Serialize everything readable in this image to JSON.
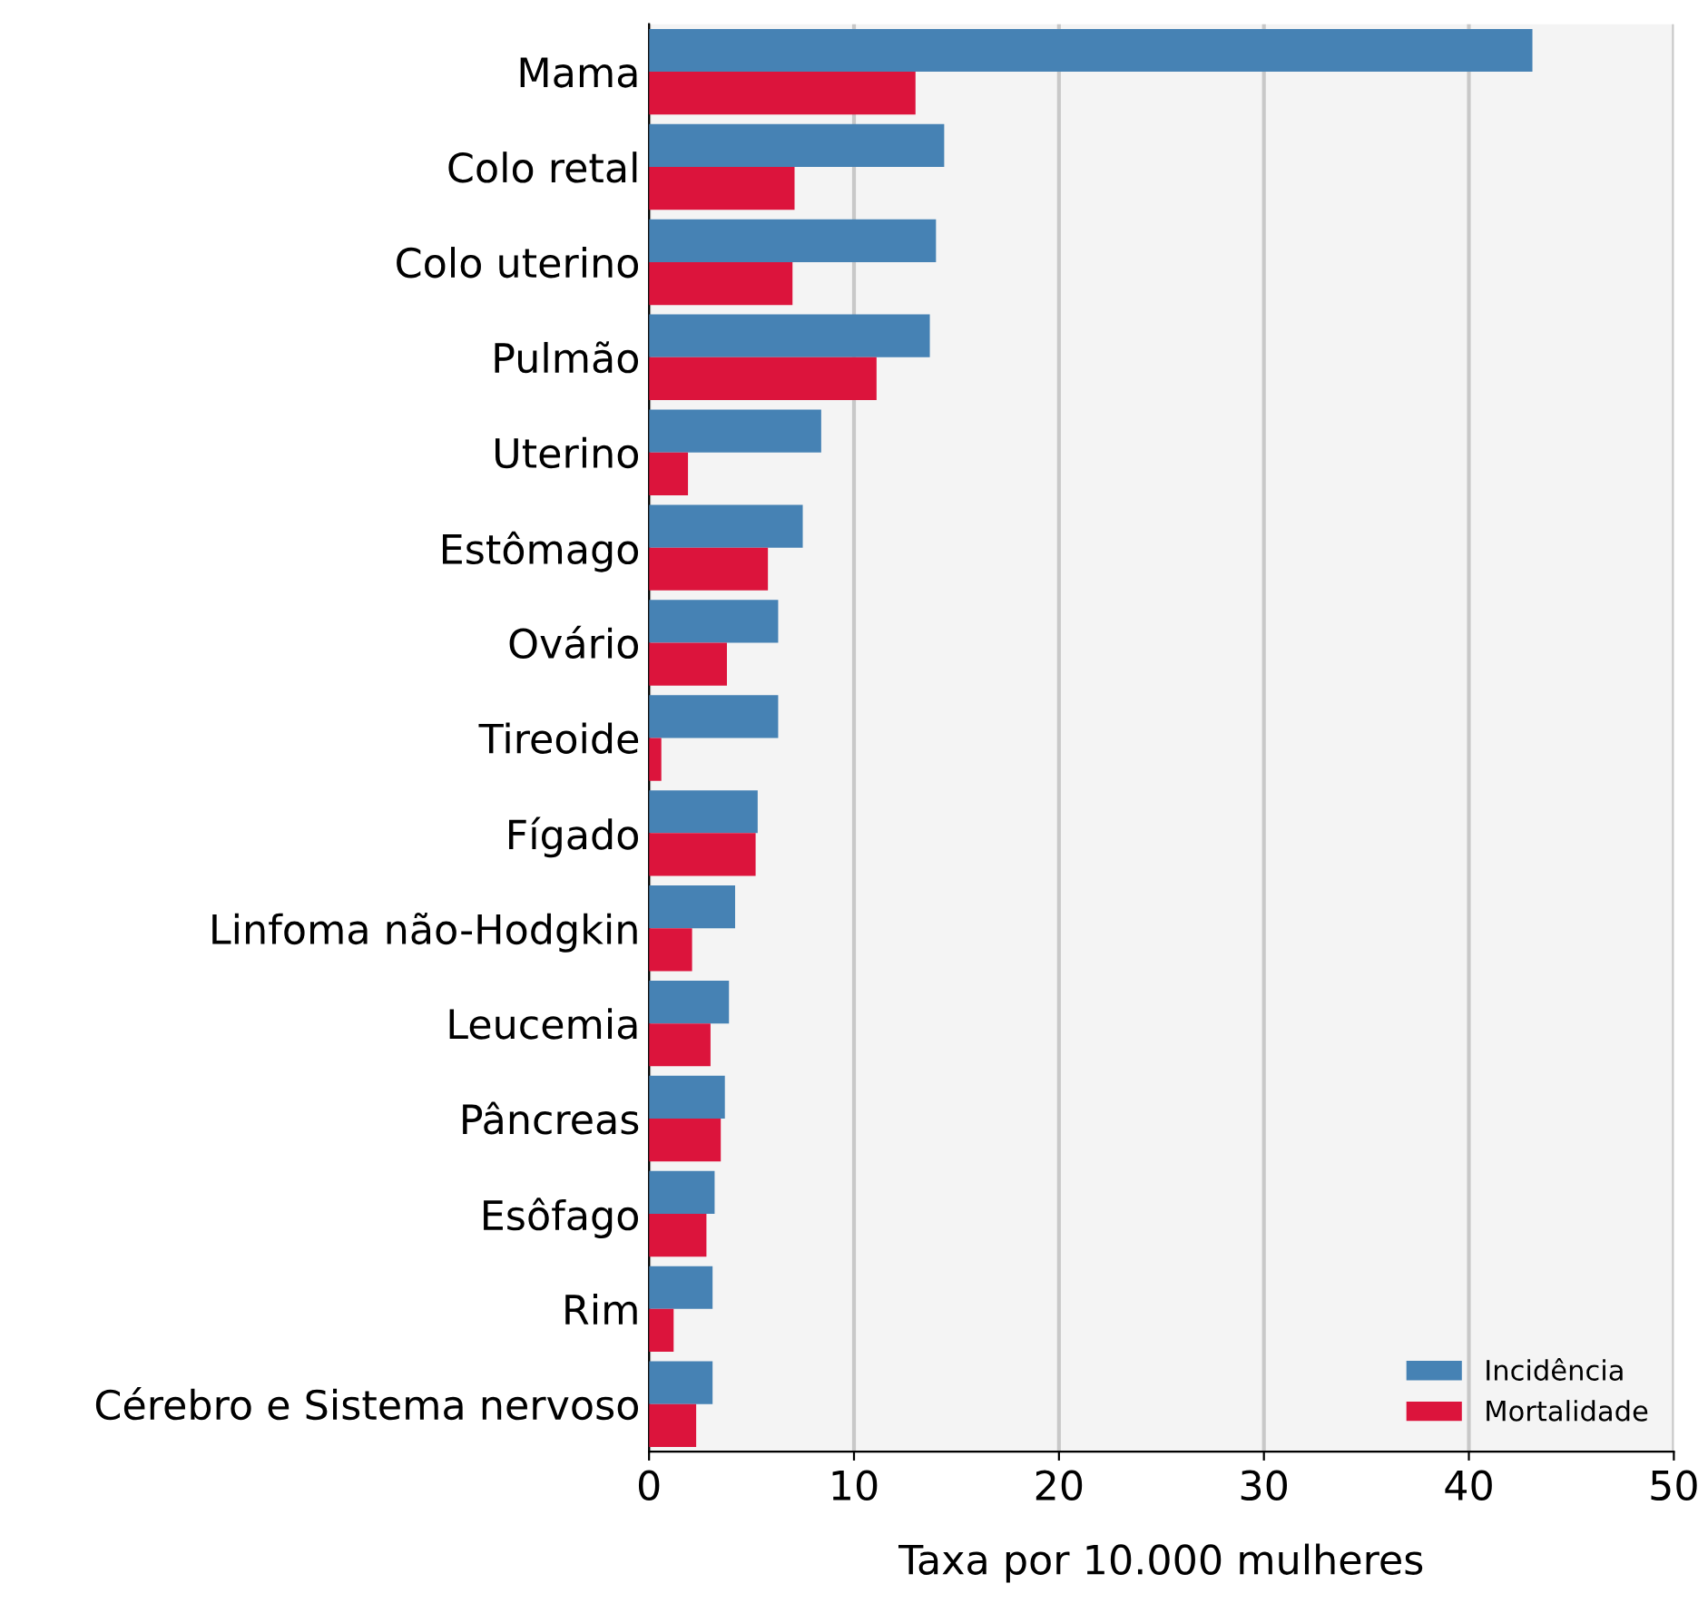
{
  "chart_data": {
    "type": "bar",
    "orientation": "horizontal",
    "xlabel": "Taxa por 10.000 mulheres",
    "categories": [
      "Mama",
      "Colo retal",
      "Colo uterino",
      "Pulmão",
      "Uterino",
      "Estômago",
      "Ovário",
      "Tireoide",
      "Fígado",
      "Linfoma não-Hodgkin",
      "Leucemia",
      "Pâncreas",
      "Esôfago",
      "Rim",
      "Cérebro e Sistema nervoso"
    ],
    "series": [
      {
        "name": "Incidência",
        "color": "#4682b4",
        "values": [
          43.1,
          14.4,
          14.0,
          13.7,
          8.4,
          7.5,
          6.3,
          6.3,
          5.3,
          4.2,
          3.9,
          3.7,
          3.2,
          3.1,
          3.1
        ]
      },
      {
        "name": "Mortalidade",
        "color": "#dc143c",
        "values": [
          13.0,
          7.1,
          7.0,
          11.1,
          1.9,
          5.8,
          3.8,
          0.6,
          5.2,
          2.1,
          3.0,
          3.5,
          2.8,
          1.2,
          2.3
        ]
      }
    ],
    "xlim": [
      0,
      50
    ],
    "xticks": [
      0,
      10,
      20,
      30,
      40,
      50
    ],
    "grid": "x",
    "legend": "bottom right"
  }
}
